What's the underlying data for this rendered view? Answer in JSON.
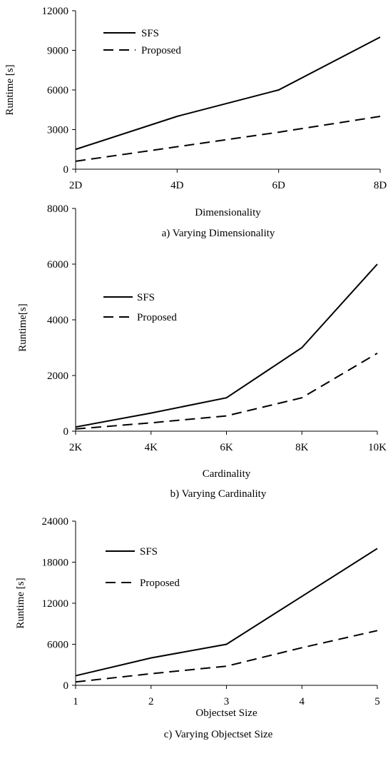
{
  "chart_data": [
    {
      "type": "line",
      "categories": [
        "2D",
        "4D",
        "6D",
        "8D"
      ],
      "series": [
        {
          "name": "SFS",
          "values": [
            1500,
            4000,
            6000,
            10000
          ],
          "style": "solid"
        },
        {
          "name": "Proposed",
          "values": [
            600,
            1700,
            2800,
            4000
          ],
          "style": "dashed"
        }
      ],
      "ylim": [
        0,
        12000
      ],
      "yticks": [
        "0",
        "3000",
        "6000",
        "9000",
        "12000"
      ],
      "xlabel": "Dimensionality",
      "ylabel": "Runtime [s]",
      "caption": "a) Varying Dimensionality",
      "legend": "top-left",
      "grid": false
    },
    {
      "type": "line",
      "categories": [
        "2K",
        "4K",
        "6K",
        "8K",
        "10K"
      ],
      "series": [
        {
          "name": "SFS",
          "values": [
            150,
            650,
            1200,
            3000,
            6000
          ],
          "style": "solid"
        },
        {
          "name": "Proposed",
          "values": [
            80,
            300,
            550,
            1200,
            2800
          ],
          "style": "dashed"
        }
      ],
      "ylim": [
        0,
        8000
      ],
      "yticks": [
        "0",
        "2000",
        "4000",
        "6000",
        "8000"
      ],
      "xlabel": "Cardinality",
      "ylabel": "Runtime[s]",
      "caption": "b) Varying Cardinality",
      "legend": "top-left",
      "grid": false
    },
    {
      "type": "line",
      "categories": [
        "1",
        "2",
        "3",
        "4",
        "5"
      ],
      "series": [
        {
          "name": "SFS",
          "values": [
            1400,
            4000,
            6000,
            13000,
            20000
          ],
          "style": "solid"
        },
        {
          "name": "Proposed",
          "values": [
            500,
            1700,
            2800,
            5500,
            8000
          ],
          "style": "dashed"
        }
      ],
      "ylim": [
        0,
        24000
      ],
      "yticks": [
        "0",
        "6000",
        "12000",
        "18000",
        "24000"
      ],
      "xlabel": "Objectset Size",
      "ylabel": "Runtime [s]",
      "caption": "c) Varying Objectset Size",
      "legend": "top-left",
      "grid": false
    }
  ]
}
